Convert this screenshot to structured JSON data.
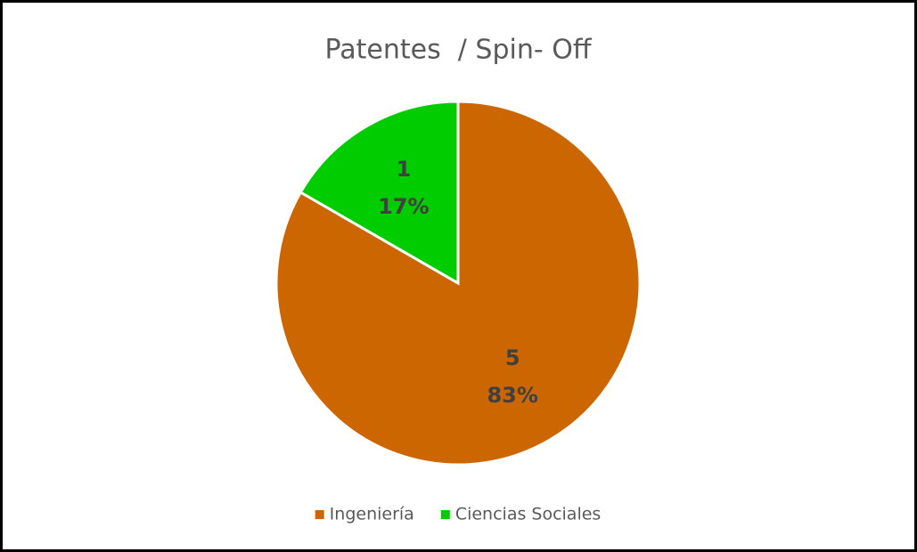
{
  "chart_data": {
    "type": "pie",
    "title": "Patentes  / Spin- Off",
    "categories": [
      "Ingeniería",
      "Ciencias Sociales"
    ],
    "values": [
      5,
      1
    ],
    "percentages": [
      {
        "value": 83,
        "label": "83%"
      },
      {
        "value": 17,
        "label": "17%"
      }
    ],
    "colors": [
      "#cc6600",
      "#00cc00"
    ],
    "legend": "bottom"
  }
}
